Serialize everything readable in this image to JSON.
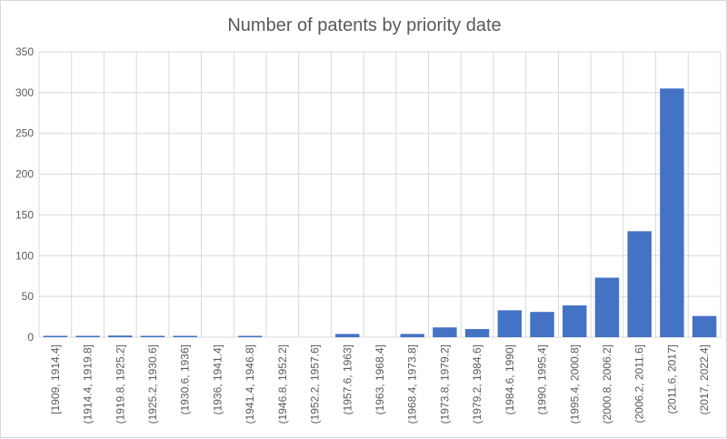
{
  "chart_data": {
    "type": "bar",
    "title": "Number of patents by priority date",
    "xlabel": "",
    "ylabel": "",
    "ylim": [
      0,
      350
    ],
    "yticks": [
      0,
      50,
      100,
      150,
      200,
      250,
      300,
      350
    ],
    "grid": true,
    "legend": "none",
    "bar_color": "#4472c4",
    "categories": [
      "[1909, 1914.4]",
      "(1914.4, 1919.8]",
      "(1919.8, 1925.2]",
      "(1925.2, 1930.6]",
      "(1930.6, 1936]",
      "(1936, 1941.4]",
      "(1941.4, 1946.8]",
      "(1946.8, 1952.2]",
      "(1952.2, 1957.6]",
      "(1957.6, 1963]",
      "(1963, 1968.4]",
      "(1968.4, 1973.8]",
      "(1973.8, 1979.2]",
      "(1979.2, 1984.6]",
      "(1984.6, 1990]",
      "(1990, 1995.4]",
      "(1995.4, 2000.8]",
      "(2000.8, 2006.2]",
      "(2006.2, 2011.6]",
      "(2011.6, 2017]",
      "(2017, 2022.4]"
    ],
    "values": [
      1,
      1,
      2,
      1,
      1,
      0,
      1,
      0,
      0,
      4,
      0,
      4,
      12,
      10,
      33,
      31,
      39,
      73,
      130,
      305,
      26
    ]
  }
}
